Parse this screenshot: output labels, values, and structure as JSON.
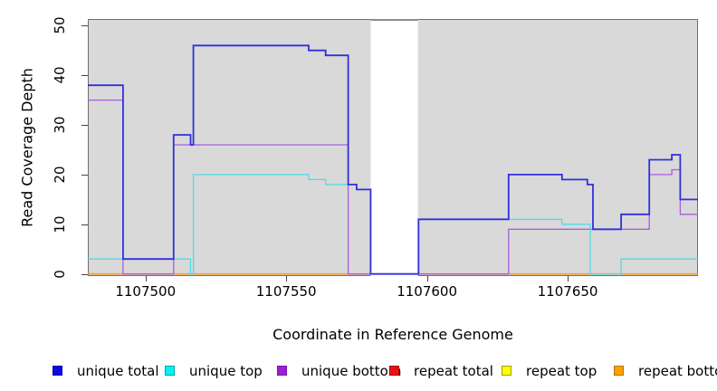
{
  "chart_data": {
    "type": "line",
    "step_style": "step-after",
    "title": "",
    "xlabel": "Coordinate in Reference Genome",
    "ylabel": "Read Coverage Depth",
    "xlim": [
      1107479.5,
      1107696.3
    ],
    "ylim": [
      0,
      50
    ],
    "x_ticks": [
      "1107500",
      "1107550",
      "1107600",
      "1107650"
    ],
    "x_tick_values": [
      1107500,
      1107550,
      1107600,
      1107650
    ],
    "y_ticks": [
      "0",
      "10",
      "20",
      "30",
      "40",
      "50"
    ],
    "y_tick_values": [
      0,
      10,
      20,
      30,
      40,
      50
    ],
    "grid": false,
    "panel_bg": "#d9d9d9",
    "panel_border": "#6e6e6e",
    "masked_region": {
      "x_start": 1107580,
      "x_end": 1107596.8,
      "fill": "#ffffff",
      "top_line_color": "#8c8c8c"
    },
    "series": [
      {
        "name": "repeat top",
        "color": "#f2f200",
        "width": 1.2,
        "points": [
          [
            1107480,
            0
          ]
        ]
      },
      {
        "name": "repeat total",
        "color": "#dd2222",
        "width": 1.2,
        "points": [
          [
            1107480,
            0
          ]
        ]
      },
      {
        "name": "repeat bottom",
        "color": "#ff9d1e",
        "width": 1.7,
        "points": [
          [
            1107480,
            0
          ]
        ]
      },
      {
        "name": "unique bottom",
        "color": "#a95fe0",
        "width": 1.3,
        "points": [
          [
            1107480,
            35
          ],
          [
            1107492,
            0
          ],
          [
            1107510,
            26
          ],
          [
            1107572,
            0
          ],
          [
            1107629,
            9
          ],
          [
            1107679,
            20
          ],
          [
            1107687,
            21
          ],
          [
            1107690,
            12
          ]
        ]
      },
      {
        "name": "unique top",
        "color": "#4ddde6",
        "width": 1.3,
        "points": [
          [
            1107480,
            3
          ],
          [
            1107516,
            0
          ],
          [
            1107517,
            20
          ],
          [
            1107558,
            19
          ],
          [
            1107564,
            18
          ],
          [
            1107575,
            17
          ],
          [
            1107580,
            0
          ],
          [
            1107597,
            11
          ],
          [
            1107648,
            10
          ],
          [
            1107658,
            0
          ],
          [
            1107669,
            3
          ]
        ]
      },
      {
        "name": "unique total",
        "color": "#3030dc",
        "width": 1.8,
        "points": [
          [
            1107480,
            38
          ],
          [
            1107492,
            3
          ],
          [
            1107510,
            28
          ],
          [
            1107516,
            26
          ],
          [
            1107517,
            46
          ],
          [
            1107558,
            45
          ],
          [
            1107564,
            44
          ],
          [
            1107572,
            18
          ],
          [
            1107575,
            17
          ],
          [
            1107580,
            0
          ],
          [
            1107597,
            11
          ],
          [
            1107629,
            20
          ],
          [
            1107648,
            19
          ],
          [
            1107657,
            18
          ],
          [
            1107659,
            9
          ],
          [
            1107669,
            12
          ],
          [
            1107679,
            23
          ],
          [
            1107687,
            24
          ],
          [
            1107690,
            15
          ]
        ]
      }
    ],
    "legend": [
      {
        "label": "unique total",
        "fill": "#0b0be0",
        "border": "#0808b0"
      },
      {
        "label": "unique top",
        "fill": "#00f2f2",
        "border": "#00a0a0"
      },
      {
        "label": "unique bottom",
        "fill": "#9a1fd4",
        "border": "#7a14aa"
      },
      {
        "label": "repeat total",
        "fill": "#ee1111",
        "border": "#aa0000"
      },
      {
        "label": "repeat top",
        "fill": "#ffff00",
        "border": "#a0a000"
      },
      {
        "label": "repeat bottom",
        "fill": "#ffa200",
        "border": "#b37400"
      }
    ],
    "legend_position": "bottom"
  }
}
